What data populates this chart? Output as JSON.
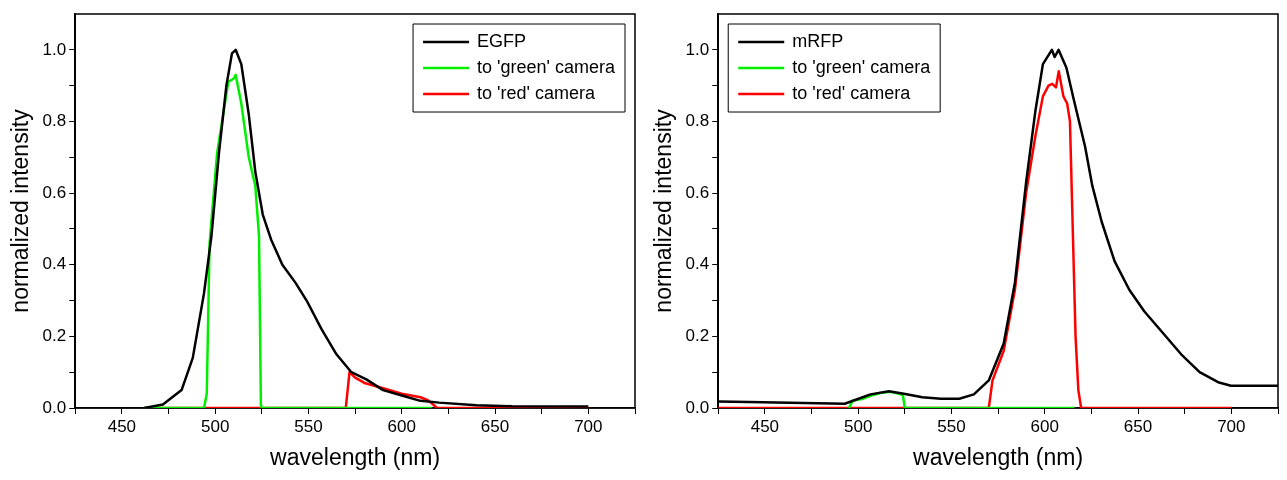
{
  "chart_data": [
    {
      "type": "line",
      "xlabel": "wavelength (nm)",
      "ylabel": "normalized intensity",
      "xlim": [
        425,
        725
      ],
      "ylim": [
        0,
        1.1
      ],
      "xticks": [
        {
          "value": 425,
          "label": null
        },
        450,
        {
          "value": 475,
          "label": null
        },
        500,
        {
          "value": 525,
          "label": null
        },
        550,
        {
          "value": 575,
          "label": null
        },
        600,
        {
          "value": 625,
          "label": null
        },
        650,
        {
          "value": 675,
          "label": null
        },
        700,
        {
          "value": 725,
          "label": null
        }
      ],
      "yticks": [
        {
          "value": 0,
          "label": "0.0"
        },
        {
          "value": 0.1,
          "label": null
        },
        {
          "value": 0.2,
          "label": "0.2"
        },
        {
          "value": 0.3,
          "label": null
        },
        {
          "value": 0.4,
          "label": "0.4"
        },
        {
          "value": 0.5,
          "label": null
        },
        {
          "value": 0.6,
          "label": "0.6"
        },
        {
          "value": 0.7,
          "label": null
        },
        {
          "value": 0.8,
          "label": "0.8"
        },
        {
          "value": 0.9,
          "label": null
        },
        {
          "value": 1.0,
          "label": "1.0"
        }
      ],
      "grid": false,
      "legend": "top right",
      "marker": "none",
      "line_style": "solid",
      "series": [
        {
          "name": "EGFP",
          "color": "#000000",
          "x": [
            462,
            472,
            482,
            488,
            494,
            498,
            502,
            506,
            509,
            511,
            514,
            518,
            521.5,
            525.5,
            530,
            536,
            543,
            549,
            557,
            565,
            573,
            581,
            590,
            600,
            610,
            620,
            640,
            659,
            700
          ],
          "values": [
            0,
            0.01,
            0.05,
            0.14,
            0.32,
            0.48,
            0.71,
            0.9,
            0.99,
            1.0,
            0.96,
            0.82,
            0.66,
            0.54,
            0.47,
            0.4,
            0.35,
            0.3,
            0.22,
            0.15,
            0.1,
            0.08,
            0.05,
            0.035,
            0.02,
            0.015,
            0.008,
            0.005,
            0.004
          ]
        },
        {
          "name": "to 'green' camera",
          "color": "#00ee00",
          "x": [
            462,
            494,
            495.5,
            497,
            501,
            504,
            507,
            510,
            511,
            514,
            518,
            521.5,
            523.5,
            524.5,
            525,
            616
          ],
          "values": [
            0,
            0,
            0.04,
            0.46,
            0.71,
            0.81,
            0.91,
            0.92,
            0.93,
            0.85,
            0.7,
            0.62,
            0.48,
            0.01,
            0,
            0
          ]
        },
        {
          "name": "to 'red' camera",
          "color": "#ff0000",
          "x": [
            462,
            570,
            572,
            575,
            580,
            590,
            600,
            610,
            614,
            619,
            700
          ],
          "values": [
            0,
            0,
            0.1,
            0.085,
            0.07,
            0.055,
            0.04,
            0.03,
            0.022,
            0,
            0
          ]
        }
      ]
    },
    {
      "type": "line",
      "xlabel": "wavelength (nm)",
      "ylabel": "normalized intensity",
      "xlim": [
        425,
        725
      ],
      "ylim": [
        0,
        1.1
      ],
      "xticks": [
        {
          "value": 425,
          "label": null
        },
        450,
        {
          "value": 475,
          "label": null
        },
        500,
        {
          "value": 525,
          "label": null
        },
        550,
        {
          "value": 575,
          "label": null
        },
        600,
        {
          "value": 625,
          "label": null
        },
        650,
        {
          "value": 675,
          "label": null
        },
        700,
        {
          "value": 725,
          "label": null
        }
      ],
      "yticks": [
        {
          "value": 0,
          "label": "0.0"
        },
        {
          "value": 0.1,
          "label": null
        },
        {
          "value": 0.2,
          "label": "0.2"
        },
        {
          "value": 0.3,
          "label": null
        },
        {
          "value": 0.4,
          "label": "0.4"
        },
        {
          "value": 0.5,
          "label": null
        },
        {
          "value": 0.6,
          "label": "0.6"
        },
        {
          "value": 0.7,
          "label": null
        },
        {
          "value": 0.8,
          "label": "0.8"
        },
        {
          "value": 0.9,
          "label": null
        },
        {
          "value": 1.0,
          "label": "1.0"
        }
      ],
      "grid": false,
      "legend": "top left",
      "marker": "none",
      "line_style": "solid",
      "series": [
        {
          "name": "mRFP",
          "color": "#000000",
          "x": [
            425,
            492.8,
            498.7,
            506.6,
            516.5,
            524.5,
            534.4,
            544.3,
            554.2,
            562,
            570,
            578,
            584,
            590,
            595,
            599,
            603.8,
            605.3,
            607.4,
            611.6,
            615.6,
            621.6,
            625.5,
            630.5,
            637.4,
            645.3,
            653.3,
            663.2,
            673.1,
            683,
            692.9,
            699.8,
            725
          ],
          "values": [
            0.018,
            0.012,
            0.023,
            0.038,
            0.047,
            0.04,
            0.03,
            0.026,
            0.026,
            0.038,
            0.077,
            0.18,
            0.35,
            0.63,
            0.83,
            0.96,
            1.0,
            0.98,
            1.0,
            0.95,
            0.86,
            0.73,
            0.62,
            0.52,
            0.41,
            0.33,
            0.27,
            0.21,
            0.15,
            0.1,
            0.072,
            0.062,
            0.062
          ]
        },
        {
          "name": "to 'green' camera",
          "color": "#00ee00",
          "x": [
            495,
            497,
            502,
            507,
            512,
            517,
            522,
            524,
            525,
            616
          ],
          "values": [
            0,
            0.02,
            0.025,
            0.035,
            0.042,
            0.045,
            0.04,
            0.035,
            0,
            0
          ]
        },
        {
          "name": "to 'red' camera",
          "color": "#ff0000",
          "x": [
            425,
            570,
            572,
            578,
            584,
            590,
            595,
            599,
            602,
            604,
            606,
            607.5,
            610,
            612,
            613.5,
            615,
            616.5,
            618,
            619.5,
            700
          ],
          "values": [
            0,
            0,
            0.077,
            0.16,
            0.33,
            0.6,
            0.76,
            0.87,
            0.9,
            0.905,
            0.895,
            0.94,
            0.87,
            0.85,
            0.8,
            0.5,
            0.2,
            0.05,
            0,
            0
          ]
        }
      ]
    }
  ]
}
